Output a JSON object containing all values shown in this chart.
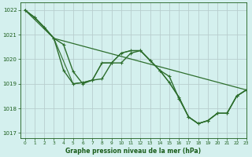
{
  "title": "Graphe pression niveau de la mer (hPa)",
  "bg_color": "#d4f0ee",
  "grid_color": "#b8cece",
  "line_color": "#2d6e2d",
  "marker_color": "#2d6e2d",
  "text_color": "#1a5c1a",
  "xlim": [
    -0.5,
    23
  ],
  "ylim": [
    1016.8,
    1022.3
  ],
  "yticks": [
    1017,
    1018,
    1019,
    1020,
    1021,
    1022
  ],
  "xticks": [
    0,
    1,
    2,
    3,
    4,
    5,
    6,
    7,
    8,
    9,
    10,
    11,
    12,
    13,
    14,
    15,
    16,
    17,
    18,
    19,
    20,
    21,
    22,
    23
  ],
  "series": [
    {
      "x": [
        0,
        1,
        2,
        3,
        4,
        5,
        6,
        7,
        8,
        9,
        10,
        11,
        12,
        13,
        14,
        15,
        16,
        17,
        18,
        19,
        20,
        21,
        22,
        23
      ],
      "y": [
        1022.0,
        1021.7,
        1021.3,
        1020.85,
        1019.55,
        1019.0,
        1019.05,
        1019.15,
        1019.85,
        1019.85,
        1020.25,
        1020.35,
        1020.35,
        1019.95,
        1019.55,
        1019.05,
        1018.45,
        1017.65,
        1017.38,
        1017.5,
        1017.8,
        1017.8,
        1018.5,
        1018.75
      ],
      "marker": true,
      "lw": 1.0,
      "ms": 2.5
    },
    {
      "x": [
        0,
        1,
        2,
        3,
        5,
        6,
        7,
        8,
        9,
        10,
        11,
        12,
        13,
        14,
        15,
        16,
        17,
        18,
        19,
        20,
        21,
        22,
        23
      ],
      "y": [
        1022.0,
        1021.7,
        1021.3,
        1020.85,
        1019.0,
        1019.05,
        1019.15,
        1019.85,
        1019.85,
        1020.25,
        1020.35,
        1020.35,
        1019.95,
        1019.55,
        1019.05,
        1018.45,
        1017.65,
        1017.38,
        1017.5,
        1017.8,
        1017.8,
        1018.5,
        1018.75
      ],
      "marker": false,
      "lw": 0.8,
      "ms": 0
    },
    {
      "x": [
        0,
        3,
        23
      ],
      "y": [
        1022.0,
        1020.85,
        1018.75
      ],
      "marker": false,
      "lw": 0.9,
      "ms": 0
    },
    {
      "x": [
        0,
        1,
        2,
        3,
        4,
        5,
        6,
        7,
        8,
        9,
        10,
        11,
        12,
        13,
        14,
        15,
        16,
        17,
        18,
        19,
        20,
        21,
        22,
        23
      ],
      "y": [
        1022.0,
        1021.7,
        1021.3,
        1020.85,
        1020.6,
        1019.5,
        1019.0,
        1019.15,
        1019.2,
        1019.85,
        1019.85,
        1020.25,
        1020.35,
        1019.95,
        1019.55,
        1019.3,
        1018.4,
        1017.65,
        1017.38,
        1017.5,
        1017.8,
        1017.8,
        1018.5,
        1018.75
      ],
      "marker": true,
      "lw": 1.0,
      "ms": 2.5
    }
  ],
  "figsize": [
    3.2,
    2.0
  ],
  "dpi": 100
}
